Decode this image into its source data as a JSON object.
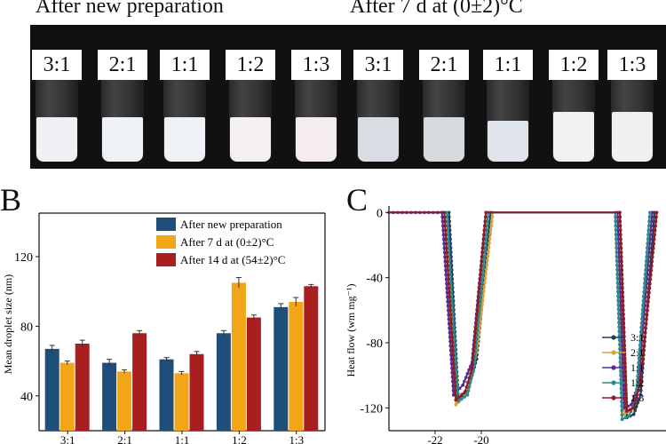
{
  "header": {
    "left": "After new preparation",
    "right": "After 7 d at (0±2)°C"
  },
  "photo": {
    "ratios": [
      "3:1",
      "2:1",
      "1:1",
      "1:2",
      "1:3",
      "3:1",
      "2:1",
      "1:1",
      "1:2",
      "1:3"
    ],
    "liquid_colors": [
      "#eef0f4",
      "#eef1f6",
      "#eef1f5",
      "#f3eff3",
      "#f4ecef",
      "#d8dde4",
      "#d5dade",
      "#dfe3ea",
      "#f2f2f2",
      "#f0f0f0"
    ]
  },
  "panel_labels": {
    "b": "B",
    "c": "C"
  },
  "chart_data": [
    {
      "type": "bar",
      "categories": [
        "3:1",
        "2:1",
        "1:1",
        "1:2",
        "1:3"
      ],
      "ylabel": "Mean droplet size (nm)",
      "yticks": [
        40,
        80,
        120
      ],
      "ylim": [
        20,
        145
      ],
      "legend_position": "top-right",
      "series": [
        {
          "name": "After new preparation",
          "color": "#1f4e79",
          "values": [
            67,
            59,
            61,
            76,
            91
          ],
          "errors": [
            2,
            2,
            1,
            1.5,
            2
          ]
        },
        {
          "name": "After 7 d at (0±2)°C",
          "color": "#f2a516",
          "values": [
            59,
            54,
            53,
            105,
            94
          ],
          "errors": [
            1,
            1,
            1,
            3,
            2.5
          ]
        },
        {
          "name": "After 14 d at (54±2)°C",
          "color": "#a91e1e",
          "values": [
            70,
            76,
            64,
            85,
            103
          ],
          "errors": [
            2,
            1.5,
            1.5,
            1.5,
            1
          ]
        }
      ]
    },
    {
      "type": "line",
      "ylabel": "Heat flow (wm mg⁻¹)",
      "yticks": [
        0,
        -40,
        -80,
        -120
      ],
      "xticks": [
        -22,
        -20
      ],
      "xlim": [
        -24,
        -12
      ],
      "ylim": [
        -134,
        4
      ],
      "legend_position": "bottom-right",
      "series": [
        {
          "name": "3:1",
          "color": "#1c3d5c",
          "x": [
            -24,
            -21.4,
            -21.0,
            -20.6,
            -20.2,
            -19.6,
            -14.0,
            -13.7,
            -13.4,
            -13.1,
            -12.5
          ],
          "y": [
            0,
            0,
            -114,
            -110,
            -90,
            0,
            0,
            -126,
            -124,
            -112,
            0
          ]
        },
        {
          "name": "2:1",
          "color": "#d9a23a",
          "x": [
            -24,
            -21.6,
            -21.1,
            -20.6,
            -20.2,
            -19.5,
            -14.1,
            -13.8,
            -13.5,
            -13.2,
            -12.6
          ],
          "y": [
            0,
            0,
            -118,
            -111,
            -86,
            0,
            0,
            -124,
            -121,
            -108,
            0
          ]
        },
        {
          "name": "1:1",
          "color": "#5a2a9a",
          "x": [
            -24,
            -21.7,
            -21.2,
            -20.8,
            -20.4,
            -19.8,
            -14.1,
            -13.8,
            -13.5,
            -13.2,
            -12.6
          ],
          "y": [
            0,
            0,
            -112,
            -106,
            -92,
            0,
            0,
            -120,
            -118,
            -106,
            0
          ]
        },
        {
          "name": "1:2",
          "color": "#2e8a8a",
          "x": [
            -24,
            -21.5,
            -21.0,
            -20.6,
            -20.3,
            -19.7,
            -14.2,
            -13.9,
            -13.6,
            -13.3,
            -12.7
          ],
          "y": [
            0,
            0,
            -116,
            -112,
            -94,
            0,
            0,
            -127,
            -125,
            -114,
            0
          ]
        },
        {
          "name": "1:3",
          "color": "#8f1c24",
          "x": [
            -24,
            -21.6,
            -21.1,
            -20.7,
            -20.4,
            -19.8,
            -14.0,
            -13.7,
            -13.4,
            -13.1,
            -12.4
          ],
          "y": [
            0,
            0,
            -115,
            -110,
            -96,
            0,
            0,
            -122,
            -120,
            -104,
            0
          ]
        }
      ]
    }
  ]
}
